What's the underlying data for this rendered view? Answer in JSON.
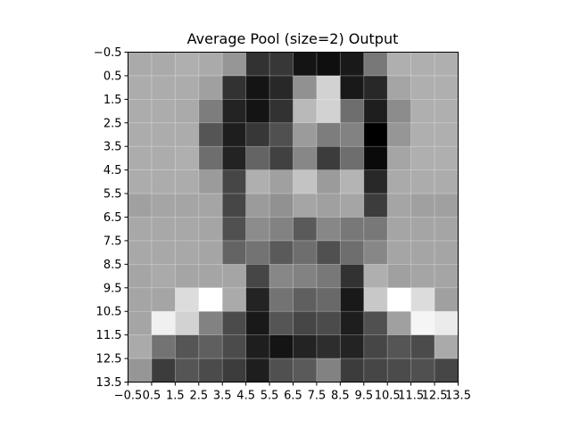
{
  "chart_data": {
    "type": "heatmap",
    "title": "Average Pool (size=2) Output",
    "xlabel": "",
    "ylabel": "",
    "colormap": "gray",
    "vmin": 0,
    "vmax": 255,
    "grid": true,
    "xlim": [
      -0.5,
      13.5
    ],
    "ylim": [
      13.5,
      -0.5
    ],
    "x_ticks": [
      "−0.5",
      "0.5",
      "1.5",
      "2.5",
      "3.5",
      "4.5",
      "5.5",
      "6.5",
      "7.5",
      "8.5",
      "9.5",
      "10.5",
      "11.5",
      "12.5",
      "13.5"
    ],
    "y_ticks": [
      "−0.5",
      "0.5",
      "1.5",
      "2.5",
      "3.5",
      "4.5",
      "5.5",
      "6.5",
      "7.5",
      "8.5",
      "9.5",
      "10.5",
      "11.5",
      "12.5",
      "13.5"
    ],
    "values": [
      [
        170,
        170,
        175,
        170,
        150,
        50,
        55,
        20,
        15,
        25,
        120,
        175,
        175,
        175
      ],
      [
        172,
        172,
        172,
        160,
        50,
        20,
        40,
        145,
        210,
        25,
        40,
        165,
        175,
        175
      ],
      [
        172,
        172,
        170,
        125,
        35,
        20,
        50,
        185,
        210,
        110,
        30,
        140,
        175,
        175
      ],
      [
        172,
        172,
        172,
        85,
        30,
        55,
        80,
        155,
        125,
        130,
        0,
        150,
        175,
        175
      ],
      [
        172,
        172,
        175,
        110,
        35,
        100,
        65,
        135,
        60,
        110,
        10,
        165,
        175,
        175
      ],
      [
        172,
        172,
        172,
        155,
        70,
        175,
        160,
        195,
        155,
        180,
        40,
        170,
        172,
        172
      ],
      [
        160,
        165,
        165,
        165,
        70,
        155,
        145,
        165,
        160,
        165,
        60,
        165,
        160,
        160
      ],
      [
        168,
        168,
        168,
        165,
        80,
        140,
        130,
        90,
        135,
        120,
        120,
        165,
        165,
        165
      ],
      [
        168,
        168,
        168,
        165,
        100,
        115,
        90,
        110,
        80,
        110,
        135,
        165,
        165,
        165
      ],
      [
        165,
        170,
        165,
        165,
        165,
        70,
        135,
        130,
        120,
        50,
        175,
        160,
        165,
        165
      ],
      [
        165,
        165,
        220,
        255,
        170,
        35,
        115,
        95,
        105,
        25,
        200,
        255,
        220,
        160
      ],
      [
        165,
        240,
        210,
        130,
        75,
        25,
        85,
        70,
        75,
        30,
        80,
        160,
        245,
        235
      ],
      [
        170,
        115,
        85,
        95,
        75,
        30,
        20,
        35,
        45,
        35,
        70,
        85,
        75,
        170
      ],
      [
        150,
        60,
        85,
        75,
        60,
        30,
        80,
        90,
        130,
        60,
        70,
        75,
        80,
        70
      ]
    ]
  }
}
